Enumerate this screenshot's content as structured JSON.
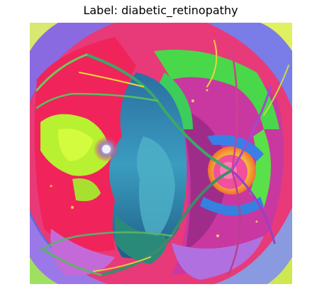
{
  "figure": {
    "title": "Label: diabetic_retinopathy"
  },
  "image": {
    "subject": "false-color fundus photograph",
    "colors": {
      "background": "#5b6cd8",
      "red_region": "#f0245a",
      "magenta_region": "#d8329a",
      "teal_region": "#2f8fb0",
      "green_region": "#5ee23a",
      "yellow_green": "#b8f032",
      "blue_ring": "#3a7ee8",
      "violet_region": "#b070e0",
      "optic_disc": "#f0d040",
      "optic_cup": "#f04c9c"
    }
  }
}
